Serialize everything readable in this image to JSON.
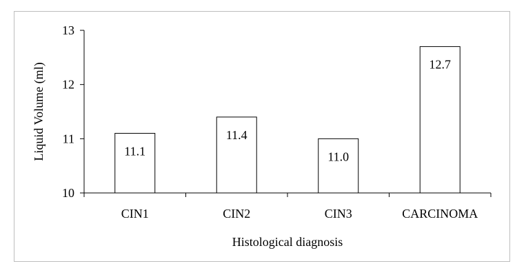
{
  "chart_data": {
    "type": "bar",
    "categories": [
      "CIN1",
      "CIN2",
      "CIN3",
      "CARCINOMA"
    ],
    "values": [
      11.1,
      11.4,
      11.0,
      12.7
    ],
    "data_labels": [
      "11.1",
      "11.4",
      "11.0",
      "12.7"
    ],
    "title": "",
    "xlabel": "Histological diagnosis",
    "ylabel": "Liquid Volume (ml)",
    "ylim": [
      10,
      13
    ],
    "yticks": [
      "10",
      "11",
      "12",
      "13"
    ],
    "grid": false,
    "legend": "none",
    "colors": {
      "bar_fill": "#ffffff",
      "bar_stroke": "#000000",
      "frame": "#bdbdbd"
    }
  }
}
